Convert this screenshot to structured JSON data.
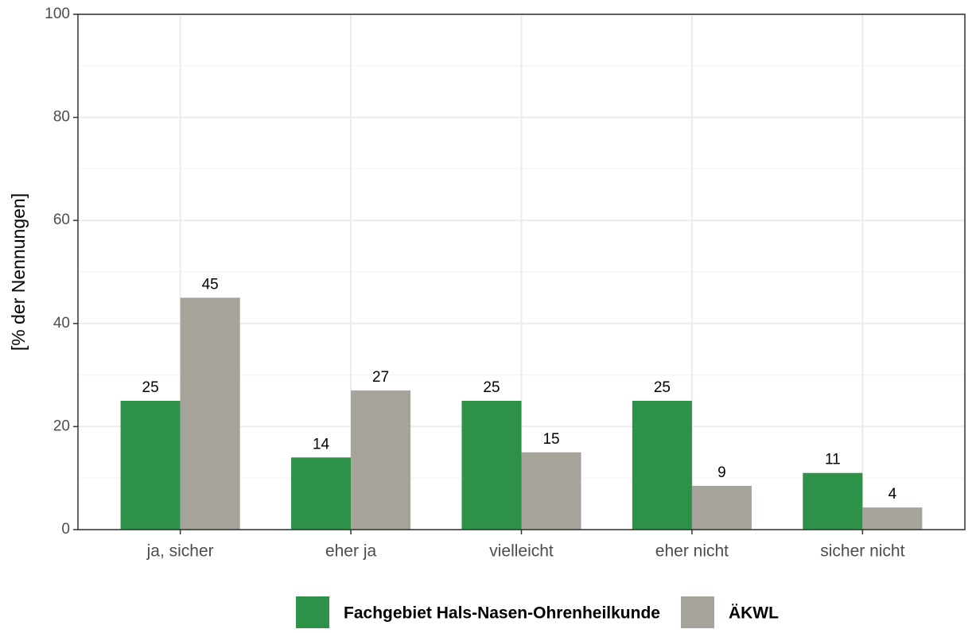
{
  "chart_data": {
    "type": "bar",
    "ylabel": "[% der Nennungen]",
    "categories": [
      "ja, sicher",
      "eher ja",
      "vielleicht",
      "eher nicht",
      "sicher nicht"
    ],
    "series": [
      {
        "name": "Fachgebiet Hals-Nasen-Ohrenheilkunde",
        "color": "#2e9148",
        "values": [
          25,
          14,
          25,
          25,
          11
        ]
      },
      {
        "name": "ÄKWL",
        "color": "#a6a39b",
        "values": [
          45,
          27,
          15,
          8.5,
          4.3
        ],
        "value_labels": [
          "45",
          "27",
          "15",
          "9",
          "4"
        ]
      }
    ],
    "ylim": [
      0,
      100
    ],
    "yticks": [
      0,
      20,
      40,
      60,
      80,
      100
    ],
    "yminor": [
      10,
      30,
      50,
      70,
      90
    ],
    "grid": true,
    "legend": "bottom"
  }
}
